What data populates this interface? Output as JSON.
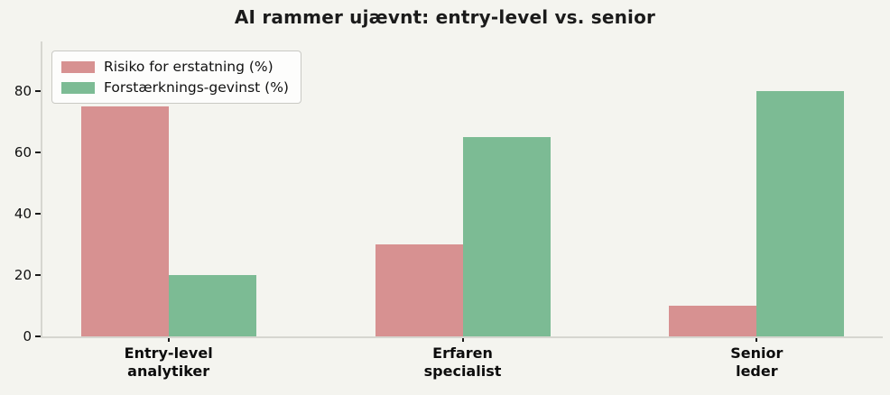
{
  "title": "AI rammer ujævnt: entry-level vs. senior",
  "chart_data": {
    "type": "bar",
    "title": "AI rammer ujævnt: entry-level vs. senior",
    "categories": [
      "Entry-level\nanalytiker",
      "Erfaren\nspecialist",
      "Senior\nleder"
    ],
    "series": [
      {
        "name": "Risiko for erstatning (%)",
        "color": "#d79191",
        "values": [
          75,
          30,
          10
        ]
      },
      {
        "name": "Forstærknings-gevinst (%)",
        "color": "#7cbb94",
        "values": [
          20,
          65,
          80
        ]
      }
    ],
    "xlabel": "",
    "ylabel": "",
    "ylim": [
      0,
      96
    ],
    "yticks": [
      0,
      20,
      40,
      60,
      80
    ],
    "grid": false,
    "legend_position": "upper left",
    "background_color": "#f4f4ef",
    "spine_color": "#d6d6d0"
  }
}
